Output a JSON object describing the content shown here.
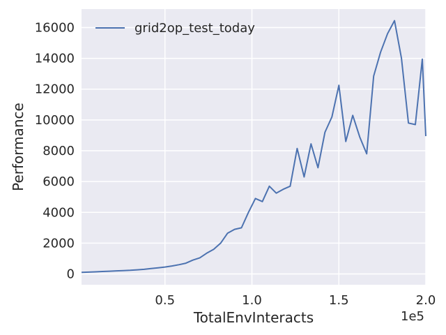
{
  "chart_data": {
    "type": "line",
    "xlabel": "TotalEnvInteracts",
    "ylabel": "Performance",
    "x_offset_label": "1e5",
    "xlim": [
      2000,
      200000
    ],
    "ylim": [
      -700,
      17200
    ],
    "x_ticks": [
      50000,
      100000,
      150000,
      200000
    ],
    "x_tick_labels": [
      "0.5",
      "1.0",
      "1.5",
      "2.0"
    ],
    "y_ticks": [
      0,
      2000,
      4000,
      6000,
      8000,
      10000,
      12000,
      14000,
      16000
    ],
    "y_tick_labels": [
      "0",
      "2000",
      "4000",
      "6000",
      "8000",
      "10000",
      "12000",
      "14000",
      "16000"
    ],
    "grid": true,
    "legend_position": "top-left",
    "background": "#eaeaf2",
    "series": [
      {
        "name": "grid2op_test_today",
        "color": "#4c72b0",
        "x": [
          2000,
          6000,
          10000,
          14000,
          18000,
          22000,
          26000,
          30000,
          34000,
          38000,
          42000,
          46000,
          50000,
          54000,
          58000,
          62000,
          66000,
          70000,
          74000,
          78000,
          82000,
          86000,
          90000,
          94000,
          98000,
          102000,
          106000,
          110000,
          114000,
          118000,
          122000,
          126000,
          130000,
          134000,
          138000,
          142000,
          146000,
          150000,
          154000,
          158000,
          162000,
          166000,
          170000,
          174000,
          178000,
          182000,
          186000,
          190000,
          194000,
          198000,
          200000
        ],
        "y": [
          100,
          120,
          140,
          160,
          180,
          200,
          220,
          240,
          270,
          300,
          350,
          400,
          450,
          520,
          600,
          700,
          900,
          1050,
          1350,
          1600,
          2000,
          2650,
          2900,
          3000,
          4000,
          4900,
          4700,
          5700,
          5250,
          5500,
          5700,
          8150,
          6300,
          8450,
          6900,
          9200,
          10200,
          12250,
          8600,
          10300,
          8900,
          7800,
          12850,
          14400,
          15600,
          16450,
          14000,
          9800,
          9700,
          13950,
          8950
        ]
      }
    ]
  }
}
